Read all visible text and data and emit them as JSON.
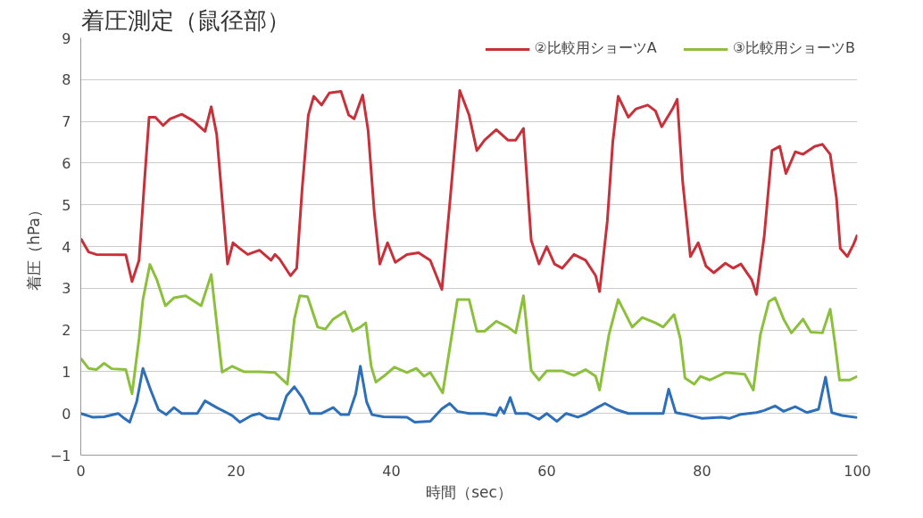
{
  "chart_data": {
    "type": "line",
    "title": "着圧測定（鼠径部）",
    "xlabel": "時間（sec）",
    "ylabel": "着圧（hPa）",
    "xlim": [
      0,
      100
    ],
    "ylim": [
      -1,
      9
    ],
    "xticks": [
      0,
      20,
      40,
      60,
      80,
      100
    ],
    "yticks": [
      -1,
      0,
      1,
      2,
      3,
      4,
      5,
      6,
      7,
      8,
      9
    ],
    "grid": "y",
    "legend": "top right",
    "marker": "none",
    "line_style": "solid",
    "series": [
      {
        "color": "#2e6fba",
        "x": [
          0,
          1.5,
          3,
          4.8,
          5.4,
          6.3,
          7.2,
          8,
          9,
          10,
          11,
          12,
          13,
          15,
          16,
          17.5,
          19.5,
          20.5,
          22,
          23,
          24,
          25.5,
          26.5,
          27.5,
          28.5,
          29.5,
          31,
          32.5,
          33.5,
          34.5,
          35.4,
          36,
          36.8,
          37.5,
          39,
          42,
          43,
          45,
          46.5,
          47.5,
          48.5,
          50,
          52,
          53.5,
          54,
          54.5,
          55.3,
          56,
          57.5,
          59,
          60,
          61.3,
          62.5,
          64,
          65,
          66.5,
          67.5,
          69,
          70.5,
          73,
          75,
          75.7,
          76.6,
          78,
          80,
          82.5,
          83.5,
          85,
          87,
          88,
          89.4,
          90.5,
          92,
          93.5,
          95,
          95.9,
          96.7,
          98,
          100
        ],
        "values": [
          0,
          -0.09,
          -0.08,
          0,
          -0.09,
          -0.21,
          0.28,
          1.08,
          0.56,
          0.09,
          -0.03,
          0.14,
          0,
          0,
          0.3,
          0.14,
          -0.05,
          -0.21,
          -0.05,
          0,
          -0.11,
          -0.14,
          0.42,
          0.64,
          0.38,
          0,
          0,
          0.14,
          -0.03,
          -0.03,
          0.47,
          1.13,
          0.28,
          -0.03,
          -0.08,
          -0.09,
          -0.21,
          -0.19,
          0.11,
          0.24,
          0.05,
          0,
          0,
          -0.05,
          0.14,
          0,
          0.38,
          0,
          0,
          -0.14,
          0,
          -0.19,
          0,
          -0.09,
          -0.02,
          0.14,
          0.24,
          0.09,
          0,
          0,
          0,
          0.58,
          0.02,
          -0.03,
          -0.12,
          -0.09,
          -0.12,
          -0.02,
          0.02,
          0.07,
          0.18,
          0.05,
          0.16,
          0.02,
          0.1,
          0.87,
          0.02,
          -0.05,
          -0.1
        ]
      },
      {
        "name": "②比較用ショーツA",
        "color": "#c8303a",
        "x": [
          0,
          1,
          2,
          5.8,
          6.6,
          7.5,
          8.2,
          8.8,
          9.6,
          10.6,
          11.5,
          13,
          14.5,
          16,
          16.8,
          17.5,
          18.9,
          19.6,
          20.5,
          21.5,
          23,
          24.5,
          25,
          25.6,
          27,
          27.8,
          28.5,
          29.3,
          30,
          31,
          32,
          33.5,
          34.5,
          35.2,
          36.3,
          37,
          37.8,
          38.5,
          39.5,
          40.5,
          42,
          43.5,
          45,
          46.5,
          47.5,
          48.8,
          50,
          51,
          52,
          53.5,
          55,
          56,
          57,
          58,
          59,
          60,
          61,
          62,
          63.5,
          65,
          66.3,
          66.8,
          67.8,
          68.5,
          69.2,
          70.5,
          71.5,
          73,
          74,
          74.8,
          76.2,
          76.8,
          77.5,
          78.5,
          79.5,
          80.5,
          81.5,
          83,
          84,
          85,
          86.4,
          87,
          88,
          89,
          90,
          90.8,
          92,
          93,
          94.5,
          95.5,
          96.5,
          97.3,
          97.8,
          98.7,
          99.5,
          100
        ],
        "values": [
          4.19,
          3.87,
          3.81,
          3.8,
          3.16,
          3.67,
          5.56,
          7.1,
          7.1,
          6.9,
          7.06,
          7.17,
          7.01,
          6.76,
          7.35,
          6.69,
          3.58,
          4.09,
          3.95,
          3.81,
          3.91,
          3.67,
          3.81,
          3.7,
          3.3,
          3.48,
          5.37,
          7.15,
          7.6,
          7.39,
          7.68,
          7.72,
          7.15,
          7.06,
          7.63,
          6.78,
          4.8,
          3.58,
          4.09,
          3.62,
          3.81,
          3.85,
          3.67,
          2.97,
          5.0,
          7.74,
          7.15,
          6.3,
          6.55,
          6.8,
          6.55,
          6.55,
          6.83,
          4.15,
          3.58,
          4.0,
          3.58,
          3.48,
          3.81,
          3.67,
          3.3,
          2.92,
          4.61,
          6.5,
          7.6,
          7.1,
          7.3,
          7.39,
          7.25,
          6.87,
          7.3,
          7.53,
          5.56,
          3.76,
          4.09,
          3.53,
          3.37,
          3.6,
          3.48,
          3.58,
          3.2,
          2.85,
          4.24,
          6.3,
          6.4,
          5.75,
          6.27,
          6.21,
          6.4,
          6.45,
          6.21,
          5.17,
          3.95,
          3.76,
          4.05,
          4.28
        ]
      },
      {
        "name": "③比較用ショーツB",
        "color": "#8cc03c",
        "x": [
          0,
          1,
          2,
          3,
          4,
          5.8,
          6.6,
          7.5,
          8,
          8.9,
          9.8,
          10.9,
          12,
          13.5,
          15.5,
          16.8,
          17.5,
          18.2,
          19.5,
          21,
          23,
          25,
          26.6,
          27.5,
          28.2,
          29.2,
          30.5,
          31.5,
          32.5,
          34,
          35,
          36,
          36.7,
          37.4,
          38,
          39,
          40.4,
          42,
          43.2,
          44.2,
          45,
          46.6,
          48.5,
          50,
          51,
          52,
          53.5,
          55,
          56,
          57,
          58,
          59,
          60,
          62,
          63.5,
          65,
          66.3,
          66.8,
          68,
          69.2,
          71,
          72.3,
          74,
          75,
          76.4,
          77.2,
          77.8,
          79,
          79.8,
          81,
          83,
          85.5,
          86.6,
          87.5,
          88.6,
          89.4,
          90.5,
          91.5,
          93,
          94,
          95.5,
          96.5,
          97.1,
          97.7,
          99,
          100
        ],
        "values": [
          1.32,
          1.08,
          1.05,
          1.2,
          1.07,
          1.05,
          0.47,
          1.79,
          2.73,
          3.57,
          3.2,
          2.58,
          2.77,
          2.82,
          2.58,
          3.33,
          2.17,
          0.99,
          1.13,
          1.0,
          1.0,
          0.98,
          0.7,
          2.26,
          2.82,
          2.8,
          2.07,
          2.02,
          2.26,
          2.44,
          1.97,
          2.07,
          2.17,
          1.13,
          0.75,
          0.89,
          1.11,
          0.98,
          1.08,
          0.89,
          0.98,
          0.49,
          2.73,
          2.73,
          1.97,
          1.97,
          2.21,
          2.07,
          1.93,
          2.82,
          1.03,
          0.8,
          1.02,
          1.02,
          0.91,
          1.05,
          0.89,
          0.56,
          1.88,
          2.73,
          2.07,
          2.3,
          2.17,
          2.07,
          2.37,
          1.79,
          0.85,
          0.7,
          0.89,
          0.8,
          0.98,
          0.94,
          0.56,
          1.88,
          2.68,
          2.77,
          2.26,
          1.93,
          2.26,
          1.95,
          1.93,
          2.5,
          1.7,
          0.8,
          0.8,
          0.89
        ]
      }
    ]
  }
}
